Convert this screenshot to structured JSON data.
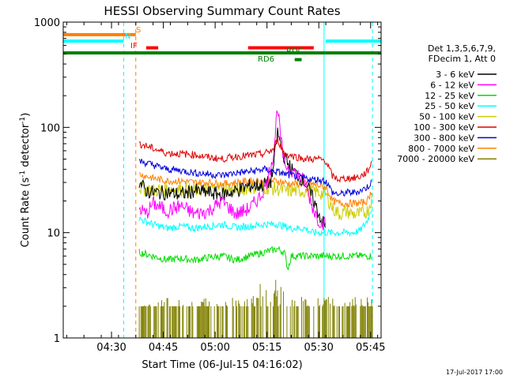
{
  "chart_data": {
    "type": "line",
    "title": "HESSI Observing Summary Count Rates",
    "xlabel": "Start Time (06-Jul-15 04:16:02)",
    "ylabel_main": "Count Rate (s",
    "ylabel_sup1": "-1",
    "ylabel_mid": " detector",
    "ylabel_sup2": "-1",
    "ylabel_end": ")",
    "y_scale": "log",
    "ylim": [
      1,
      1000
    ],
    "xlim_minutes": [
      0,
      92
    ],
    "x_ticks": [
      {
        "label": "04:30",
        "m": 13.97
      },
      {
        "label": "04:45",
        "m": 28.97
      },
      {
        "label": "05:00",
        "m": 43.97
      },
      {
        "label": "05:15",
        "m": 58.97
      },
      {
        "label": "05:30",
        "m": 73.97
      },
      {
        "label": "05:45",
        "m": 88.97
      }
    ],
    "y_ticks": [
      {
        "label": "1",
        "v": 1
      },
      {
        "label": "10",
        "v": 10
      },
      {
        "label": "100",
        "v": 100
      },
      {
        "label": "1000",
        "v": 1000
      }
    ],
    "legend": {
      "position": "right",
      "header": [
        "Det 1,3,5,6,7,9,",
        "FDecim 1, Att 0"
      ],
      "entries": [
        {
          "label": "3 - 6 keV",
          "color": "#000000"
        },
        {
          "label": "6 - 12 keV",
          "color": "#ff00ff"
        },
        {
          "label": "12 - 25 keV",
          "color": "#00dd00"
        },
        {
          "label": "25 - 50 keV",
          "color": "#00ffff"
        },
        {
          "label": "50 - 100 keV",
          "color": "#cccc00"
        },
        {
          "label": "100 - 300 keV",
          "color": "#dd0000"
        },
        {
          "label": "300 - 800 keV",
          "color": "#0000dd"
        },
        {
          "label": "800 - 7000 keV",
          "color": "#ff8000"
        },
        {
          "label": "7000 - 20000 keV",
          "color": "#808000"
        }
      ]
    },
    "series": [
      {
        "name": "3 - 6 keV",
        "color": "#000000",
        "x": [
          22,
          24,
          26,
          30,
          34,
          38,
          42,
          46,
          50,
          54,
          57,
          60,
          61,
          62,
          64,
          66,
          68,
          70,
          72,
          74,
          76
        ],
        "y": [
          30,
          25,
          24,
          24,
          23,
          25,
          24,
          23,
          25,
          28,
          28,
          30,
          45,
          90,
          52,
          40,
          35,
          30,
          22,
          15,
          11
        ]
      },
      {
        "name": "6 - 12 keV",
        "color": "#ff00ff",
        "x": [
          22,
          24,
          26,
          30,
          34,
          38,
          42,
          46,
          50,
          54,
          57,
          59,
          61,
          62,
          63,
          64,
          66,
          68,
          70,
          72,
          74,
          76
        ],
        "y": [
          17,
          15,
          19,
          16,
          18,
          15,
          16,
          20,
          15,
          17,
          22,
          30,
          60,
          165,
          75,
          45,
          40,
          35,
          30,
          18,
          13,
          12
        ]
      },
      {
        "name": "12 - 25 keV",
        "color": "#00dd00",
        "x": [
          22,
          26,
          30,
          34,
          38,
          42,
          46,
          50,
          54,
          58,
          62,
          64,
          65,
          66,
          68,
          70,
          72,
          74,
          76,
          78,
          80,
          82,
          84,
          86,
          88,
          89.5
        ],
        "y": [
          6.5,
          6,
          5.5,
          5.7,
          5.5,
          5.8,
          6,
          5.5,
          6,
          6.5,
          7,
          6.5,
          4.5,
          6,
          6,
          6,
          6,
          6,
          6,
          6,
          6,
          6,
          6,
          6,
          6,
          6
        ]
      },
      {
        "name": "25 - 50 keV",
        "color": "#00ffff",
        "x": [
          22,
          26,
          30,
          34,
          38,
          42,
          46,
          50,
          54,
          58,
          62,
          64,
          66,
          68,
          70,
          72,
          74,
          76,
          78,
          80,
          82,
          84,
          86,
          88,
          89.5
        ],
        "y": [
          13.5,
          12,
          11,
          11.5,
          11,
          11.5,
          12,
          11.2,
          11.5,
          12,
          12,
          11.5,
          11,
          11,
          11,
          10,
          10,
          10,
          10,
          10,
          10,
          10,
          10.5,
          13,
          18
        ]
      },
      {
        "name": "50 - 100 keV",
        "color": "#cccc00",
        "x": [
          22,
          26,
          30,
          34,
          38,
          42,
          46,
          50,
          54,
          58,
          62,
          64,
          66,
          68,
          70,
          72,
          74,
          76,
          78,
          80,
          82,
          84,
          86,
          88,
          89.5
        ],
        "y": [
          27,
          25,
          26,
          26,
          25,
          26,
          27,
          25,
          27,
          27,
          26,
          25,
          25,
          25,
          25,
          25,
          24,
          23,
          17,
          15,
          16,
          15,
          15,
          16,
          22
        ]
      },
      {
        "name": "100 - 300 keV",
        "color": "#dd0000",
        "x": [
          22,
          26,
          30,
          34,
          38,
          42,
          46,
          50,
          54,
          58,
          61,
          62,
          64,
          66,
          68,
          70,
          72,
          74,
          76,
          78,
          80,
          82,
          84,
          86,
          88,
          89.5
        ],
        "y": [
          70,
          63,
          57,
          56,
          55,
          52,
          50,
          53,
          54,
          56,
          62,
          78,
          56,
          54,
          52,
          50,
          50,
          50,
          48,
          34,
          32,
          33,
          33,
          34,
          38,
          48
        ]
      },
      {
        "name": "300 - 800 keV",
        "color": "#0000dd",
        "x": [
          22,
          26,
          30,
          34,
          38,
          42,
          46,
          50,
          54,
          58,
          62,
          64,
          66,
          68,
          70,
          72,
          74,
          76,
          78,
          80,
          82,
          84,
          86,
          88,
          89.5
        ],
        "y": [
          48,
          44,
          40,
          39,
          37,
          36,
          35,
          37,
          38,
          40,
          38,
          36,
          35,
          34,
          33,
          32,
          32,
          31,
          24,
          23,
          24,
          24,
          25,
          27,
          31
        ]
      },
      {
        "name": "800 - 7000 keV",
        "color": "#ff8000",
        "x": [
          22,
          26,
          30,
          34,
          38,
          42,
          46,
          50,
          54,
          58,
          62,
          64,
          66,
          68,
          70,
          72,
          74,
          76,
          78,
          80,
          82,
          84,
          86,
          88,
          89.5
        ],
        "y": [
          36,
          33,
          31,
          31,
          30,
          30,
          29,
          30,
          31,
          31,
          31,
          30,
          29,
          29,
          29,
          29,
          28,
          27,
          20,
          19,
          19,
          19,
          19,
          20,
          26
        ]
      },
      {
        "name": "7000 - 20000 keV",
        "color": "#808000",
        "x": [
          22,
          89.5
        ],
        "y": [
          2,
          2
        ]
      }
    ],
    "annotations": [
      {
        "label": "S",
        "color": "#ff8000",
        "x_start": 0,
        "x_end": 21,
        "y": 760
      },
      {
        "label": "N",
        "color": "#00ffff",
        "x_start": 0,
        "x_end": 17.5,
        "y": 660
      },
      {
        "label": "IF",
        "color": "#ff0000",
        "x_start": 24,
        "x_end": 27.5,
        "y": 570
      },
      {
        "label": "RD6",
        "color": "#008000",
        "x_start": 67,
        "x_end": 69,
        "y": 440
      },
      {
        "label": "RDC",
        "color": "#008000",
        "x_start": 0,
        "x_end": 92,
        "y": 510
      },
      {
        "label": "",
        "color": "#ff0000",
        "x_start": 53.5,
        "x_end": 72.5,
        "y": 570
      },
      {
        "label": "",
        "color": "#00ffff",
        "x_start": 76,
        "x_end": 92,
        "y": 660
      }
    ],
    "vertical_lines": [
      {
        "x": 17.5,
        "color": "#00ffff",
        "style": "dashed"
      },
      {
        "x": 21,
        "color": "#ff8000",
        "style": "dashed"
      },
      {
        "x": 75.5,
        "color": "#00ffff",
        "style": "solid"
      },
      {
        "x": 89.5,
        "color": "#00ffff",
        "style": "dashed"
      }
    ]
  },
  "footer_date": "17-Jul-2017 17:00"
}
